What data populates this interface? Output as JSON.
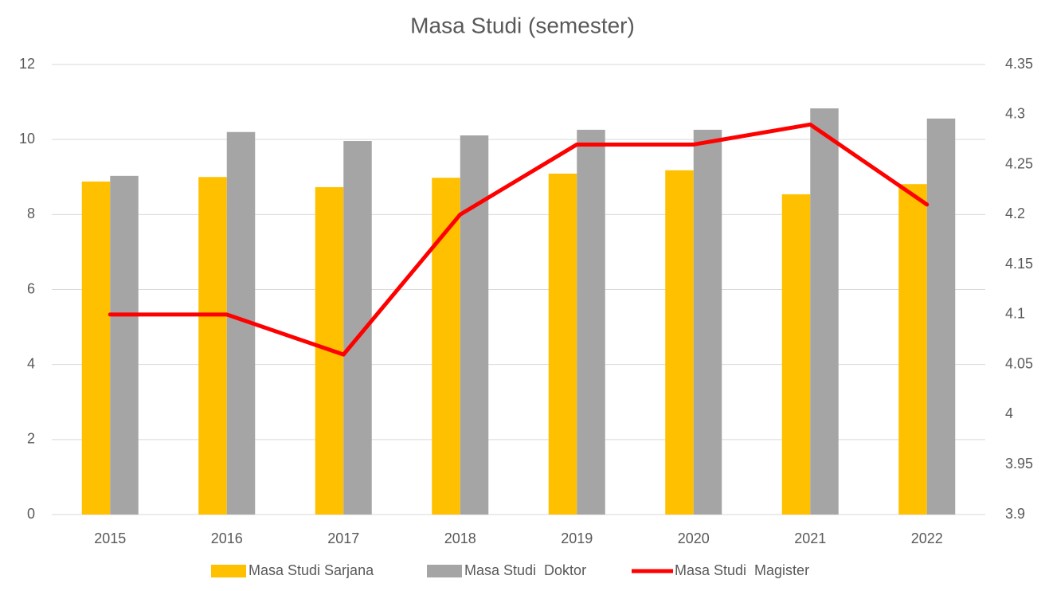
{
  "chart_data": {
    "type": "bar_line",
    "title": "Masa Studi (semester)",
    "categories": [
      "2015",
      "2016",
      "2017",
      "2018",
      "2019",
      "2020",
      "2021",
      "2022"
    ],
    "series": [
      {
        "name": "Masa Studi Sarjana",
        "color": "#ffc000",
        "type": "bar",
        "values": [
          8.88,
          9.0,
          8.73,
          8.98,
          9.09,
          9.18,
          8.54,
          8.81
        ]
      },
      {
        "name": "Masa Studi  Doktor",
        "color": "#a5a5a5",
        "type": "bar",
        "values": [
          9.03,
          10.2,
          9.96,
          10.11,
          10.26,
          10.26,
          10.83,
          10.56
        ]
      },
      {
        "name": "Masa Studi  Magister",
        "color": "#ff0000",
        "type": "line",
        "axis": "y2",
        "values": [
          4.1,
          4.1,
          4.06,
          4.2,
          4.27,
          4.27,
          4.29,
          4.21
        ]
      }
    ],
    "ylim": [
      0,
      12
    ],
    "yticks": [
      0,
      2,
      4,
      6,
      8,
      10,
      12
    ],
    "y2lim": [
      3.9,
      4.35
    ],
    "y2ticks": [
      3.9,
      3.95,
      4,
      4.05,
      4.1,
      4.15,
      4.2,
      4.25,
      4.3,
      4.35
    ],
    "grid": true,
    "legend": "bottom"
  }
}
